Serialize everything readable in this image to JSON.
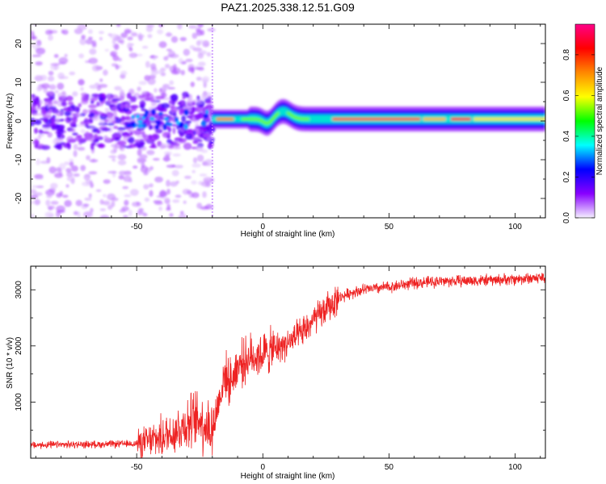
{
  "figure_title": "PAZ1.2025.338.12.51.G09",
  "chart_data": [
    {
      "type": "heatmap",
      "title": "PAZ1.2025.338.12.51.G09",
      "xlabel": "Height of straight line (km)",
      "ylabel": "Frequency (Hz)",
      "xlim": [
        -92,
        112
      ],
      "ylim": [
        -25,
        25
      ],
      "xticks": [
        -50,
        0,
        50,
        100
      ],
      "yticks": [
        -20,
        -10,
        0,
        10,
        20
      ],
      "description_points": {
        "noise_region_x": [
          -92,
          -20
        ],
        "signal_start_x": -20,
        "ridge_frequency_hz": 0.5,
        "ridge_x": [
          -20,
          112
        ],
        "bump_near_x": 8,
        "bump_peak_hz": 2.5
      },
      "colorbar": {
        "label": "Normalized spectral amplitude",
        "range": [
          0.0,
          0.95
        ],
        "ticks": [
          0.0,
          0.2,
          0.4,
          0.6,
          0.8
        ],
        "tick_labels": [
          "0.0",
          "0.2",
          "0.4",
          "0.6",
          "0.8"
        ],
        "colormap": [
          "#f5f0ff",
          "#8800ff",
          "#0000ff",
          "#00ffff",
          "#00ff00",
          "#ffff00",
          "#ff8800",
          "#ff0000",
          "#ff0088"
        ]
      }
    },
    {
      "type": "line",
      "xlabel": "Height of straight line (km)",
      "ylabel": "SNR (10 * v/v)",
      "xlim": [
        -92,
        112
      ],
      "ylim": [
        0,
        3420
      ],
      "xticks": [
        -50,
        0,
        50,
        100
      ],
      "yticks": [
        1000,
        2000,
        3000
      ],
      "series": [
        {
          "name": "SNR",
          "color": "#ee2222",
          "trend_x": [
            -92,
            -80,
            -60,
            -50,
            -45,
            -40,
            -35,
            -30,
            -25,
            -20,
            -17,
            -15,
            -13,
            -10,
            -5,
            0,
            5,
            10,
            15,
            20,
            25,
            30,
            35,
            40,
            50,
            60,
            70,
            80,
            90,
            100,
            112
          ],
          "trend_y": [
            230,
            240,
            250,
            260,
            300,
            380,
            480,
            620,
            700,
            500,
            1100,
            1500,
            1350,
            1650,
            1800,
            1850,
            1950,
            2050,
            2200,
            2450,
            2650,
            2850,
            2950,
            3000,
            3050,
            3120,
            3150,
            3160,
            3170,
            3190,
            3220
          ]
        }
      ]
    }
  ]
}
